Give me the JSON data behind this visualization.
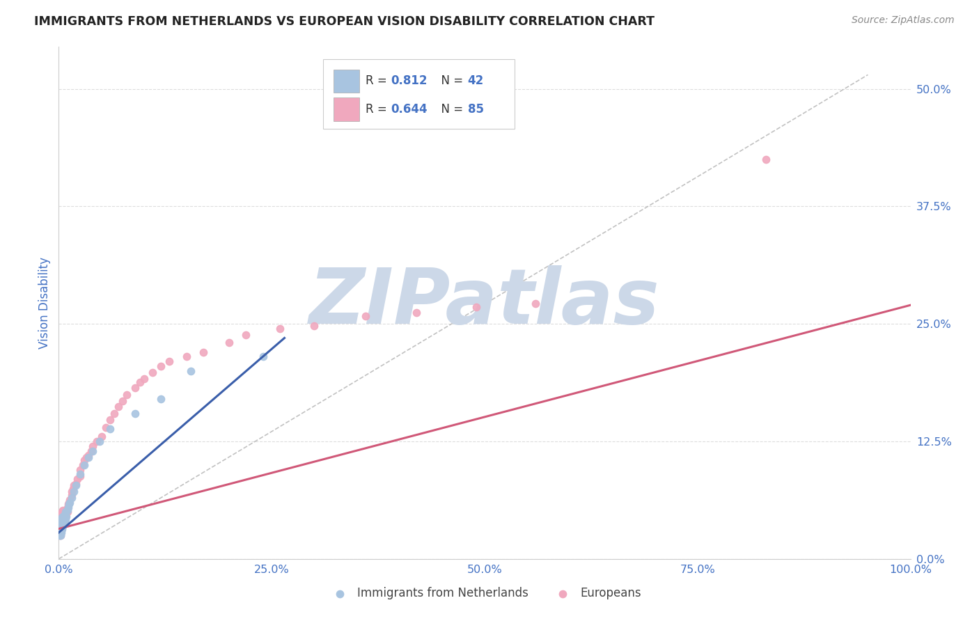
{
  "title": "IMMIGRANTS FROM NETHERLANDS VS EUROPEAN VISION DISABILITY CORRELATION CHART",
  "source": "Source: ZipAtlas.com",
  "ylabel": "Vision Disability",
  "series1_label": "Immigrants from Netherlands",
  "series2_label": "Europeans",
  "series1_color": "#a8c4e0",
  "series2_color": "#f0a8be",
  "series1_R": 0.812,
  "series1_N": 42,
  "series2_R": 0.644,
  "series2_N": 85,
  "series1_line_color": "#3a5eaa",
  "series2_line_color": "#d05878",
  "ref_line_color": "#bbbbbb",
  "background_color": "#ffffff",
  "grid_color": "#dddddd",
  "xlim": [
    0.0,
    1.0
  ],
  "ylim": [
    0.0,
    0.545
  ],
  "yticks": [
    0.0,
    0.125,
    0.25,
    0.375,
    0.5
  ],
  "ytick_labels": [
    "0.0%",
    "12.5%",
    "25.0%",
    "37.5%",
    "50.0%"
  ],
  "xticks": [
    0.0,
    0.25,
    0.5,
    0.75,
    1.0
  ],
  "xtick_labels": [
    "0.0%",
    "25.0%",
    "50.0%",
    "75.0%",
    "100.0%"
  ],
  "series1_x": [
    0.001,
    0.001,
    0.001,
    0.002,
    0.002,
    0.002,
    0.002,
    0.002,
    0.003,
    0.003,
    0.003,
    0.003,
    0.004,
    0.004,
    0.004,
    0.005,
    0.005,
    0.005,
    0.006,
    0.006,
    0.007,
    0.007,
    0.008,
    0.008,
    0.009,
    0.01,
    0.011,
    0.012,
    0.013,
    0.015,
    0.018,
    0.02,
    0.025,
    0.03,
    0.035,
    0.04,
    0.048,
    0.06,
    0.09,
    0.12,
    0.155,
    0.24
  ],
  "series1_y": [
    0.025,
    0.028,
    0.03,
    0.025,
    0.032,
    0.035,
    0.03,
    0.04,
    0.028,
    0.033,
    0.038,
    0.042,
    0.032,
    0.038,
    0.044,
    0.035,
    0.04,
    0.045,
    0.038,
    0.043,
    0.04,
    0.047,
    0.042,
    0.05,
    0.045,
    0.052,
    0.055,
    0.058,
    0.06,
    0.065,
    0.072,
    0.078,
    0.09,
    0.1,
    0.108,
    0.115,
    0.125,
    0.138,
    0.155,
    0.17,
    0.2,
    0.215
  ],
  "series2_x": [
    0.001,
    0.001,
    0.001,
    0.001,
    0.001,
    0.001,
    0.001,
    0.001,
    0.001,
    0.001,
    0.002,
    0.002,
    0.002,
    0.002,
    0.002,
    0.002,
    0.002,
    0.002,
    0.002,
    0.002,
    0.003,
    0.003,
    0.003,
    0.003,
    0.003,
    0.004,
    0.004,
    0.004,
    0.004,
    0.005,
    0.005,
    0.005,
    0.005,
    0.006,
    0.006,
    0.006,
    0.007,
    0.007,
    0.008,
    0.008,
    0.009,
    0.01,
    0.01,
    0.011,
    0.012,
    0.013,
    0.015,
    0.015,
    0.017,
    0.018,
    0.02,
    0.022,
    0.025,
    0.025,
    0.028,
    0.03,
    0.032,
    0.035,
    0.038,
    0.04,
    0.045,
    0.05,
    0.055,
    0.06,
    0.065,
    0.07,
    0.075,
    0.08,
    0.09,
    0.095,
    0.1,
    0.11,
    0.12,
    0.13,
    0.15,
    0.17,
    0.2,
    0.22,
    0.26,
    0.3,
    0.36,
    0.42,
    0.49,
    0.56,
    0.83
  ],
  "series2_y": [
    0.025,
    0.028,
    0.03,
    0.033,
    0.035,
    0.037,
    0.04,
    0.042,
    0.038,
    0.044,
    0.025,
    0.028,
    0.03,
    0.033,
    0.035,
    0.038,
    0.04,
    0.042,
    0.045,
    0.048,
    0.03,
    0.033,
    0.038,
    0.042,
    0.045,
    0.035,
    0.04,
    0.045,
    0.05,
    0.038,
    0.042,
    0.047,
    0.052,
    0.04,
    0.045,
    0.05,
    0.042,
    0.048,
    0.045,
    0.052,
    0.048,
    0.05,
    0.055,
    0.058,
    0.06,
    0.063,
    0.068,
    0.072,
    0.075,
    0.078,
    0.08,
    0.085,
    0.088,
    0.095,
    0.1,
    0.105,
    0.108,
    0.11,
    0.115,
    0.12,
    0.125,
    0.13,
    0.14,
    0.148,
    0.155,
    0.162,
    0.168,
    0.175,
    0.182,
    0.188,
    0.192,
    0.198,
    0.205,
    0.21,
    0.215,
    0.22,
    0.23,
    0.238,
    0.245,
    0.248,
    0.258,
    0.262,
    0.268,
    0.272,
    0.425
  ],
  "series1_trend_x": [
    0.0,
    0.265
  ],
  "series1_trend_y": [
    0.028,
    0.235
  ],
  "series2_trend_x": [
    0.0,
    1.0
  ],
  "series2_trend_y": [
    0.032,
    0.27
  ],
  "ref_line_x": [
    0.0,
    0.95
  ],
  "ref_line_y": [
    0.0,
    0.515
  ],
  "watermark_text": "ZIPatlas",
  "watermark_color": "#ccd8e8",
  "title_color": "#222222",
  "value_color": "#4472c4",
  "tick_label_color": "#4472c4",
  "legend_box_color": "#f0f4fa",
  "legend_border_color": "#cccccc"
}
